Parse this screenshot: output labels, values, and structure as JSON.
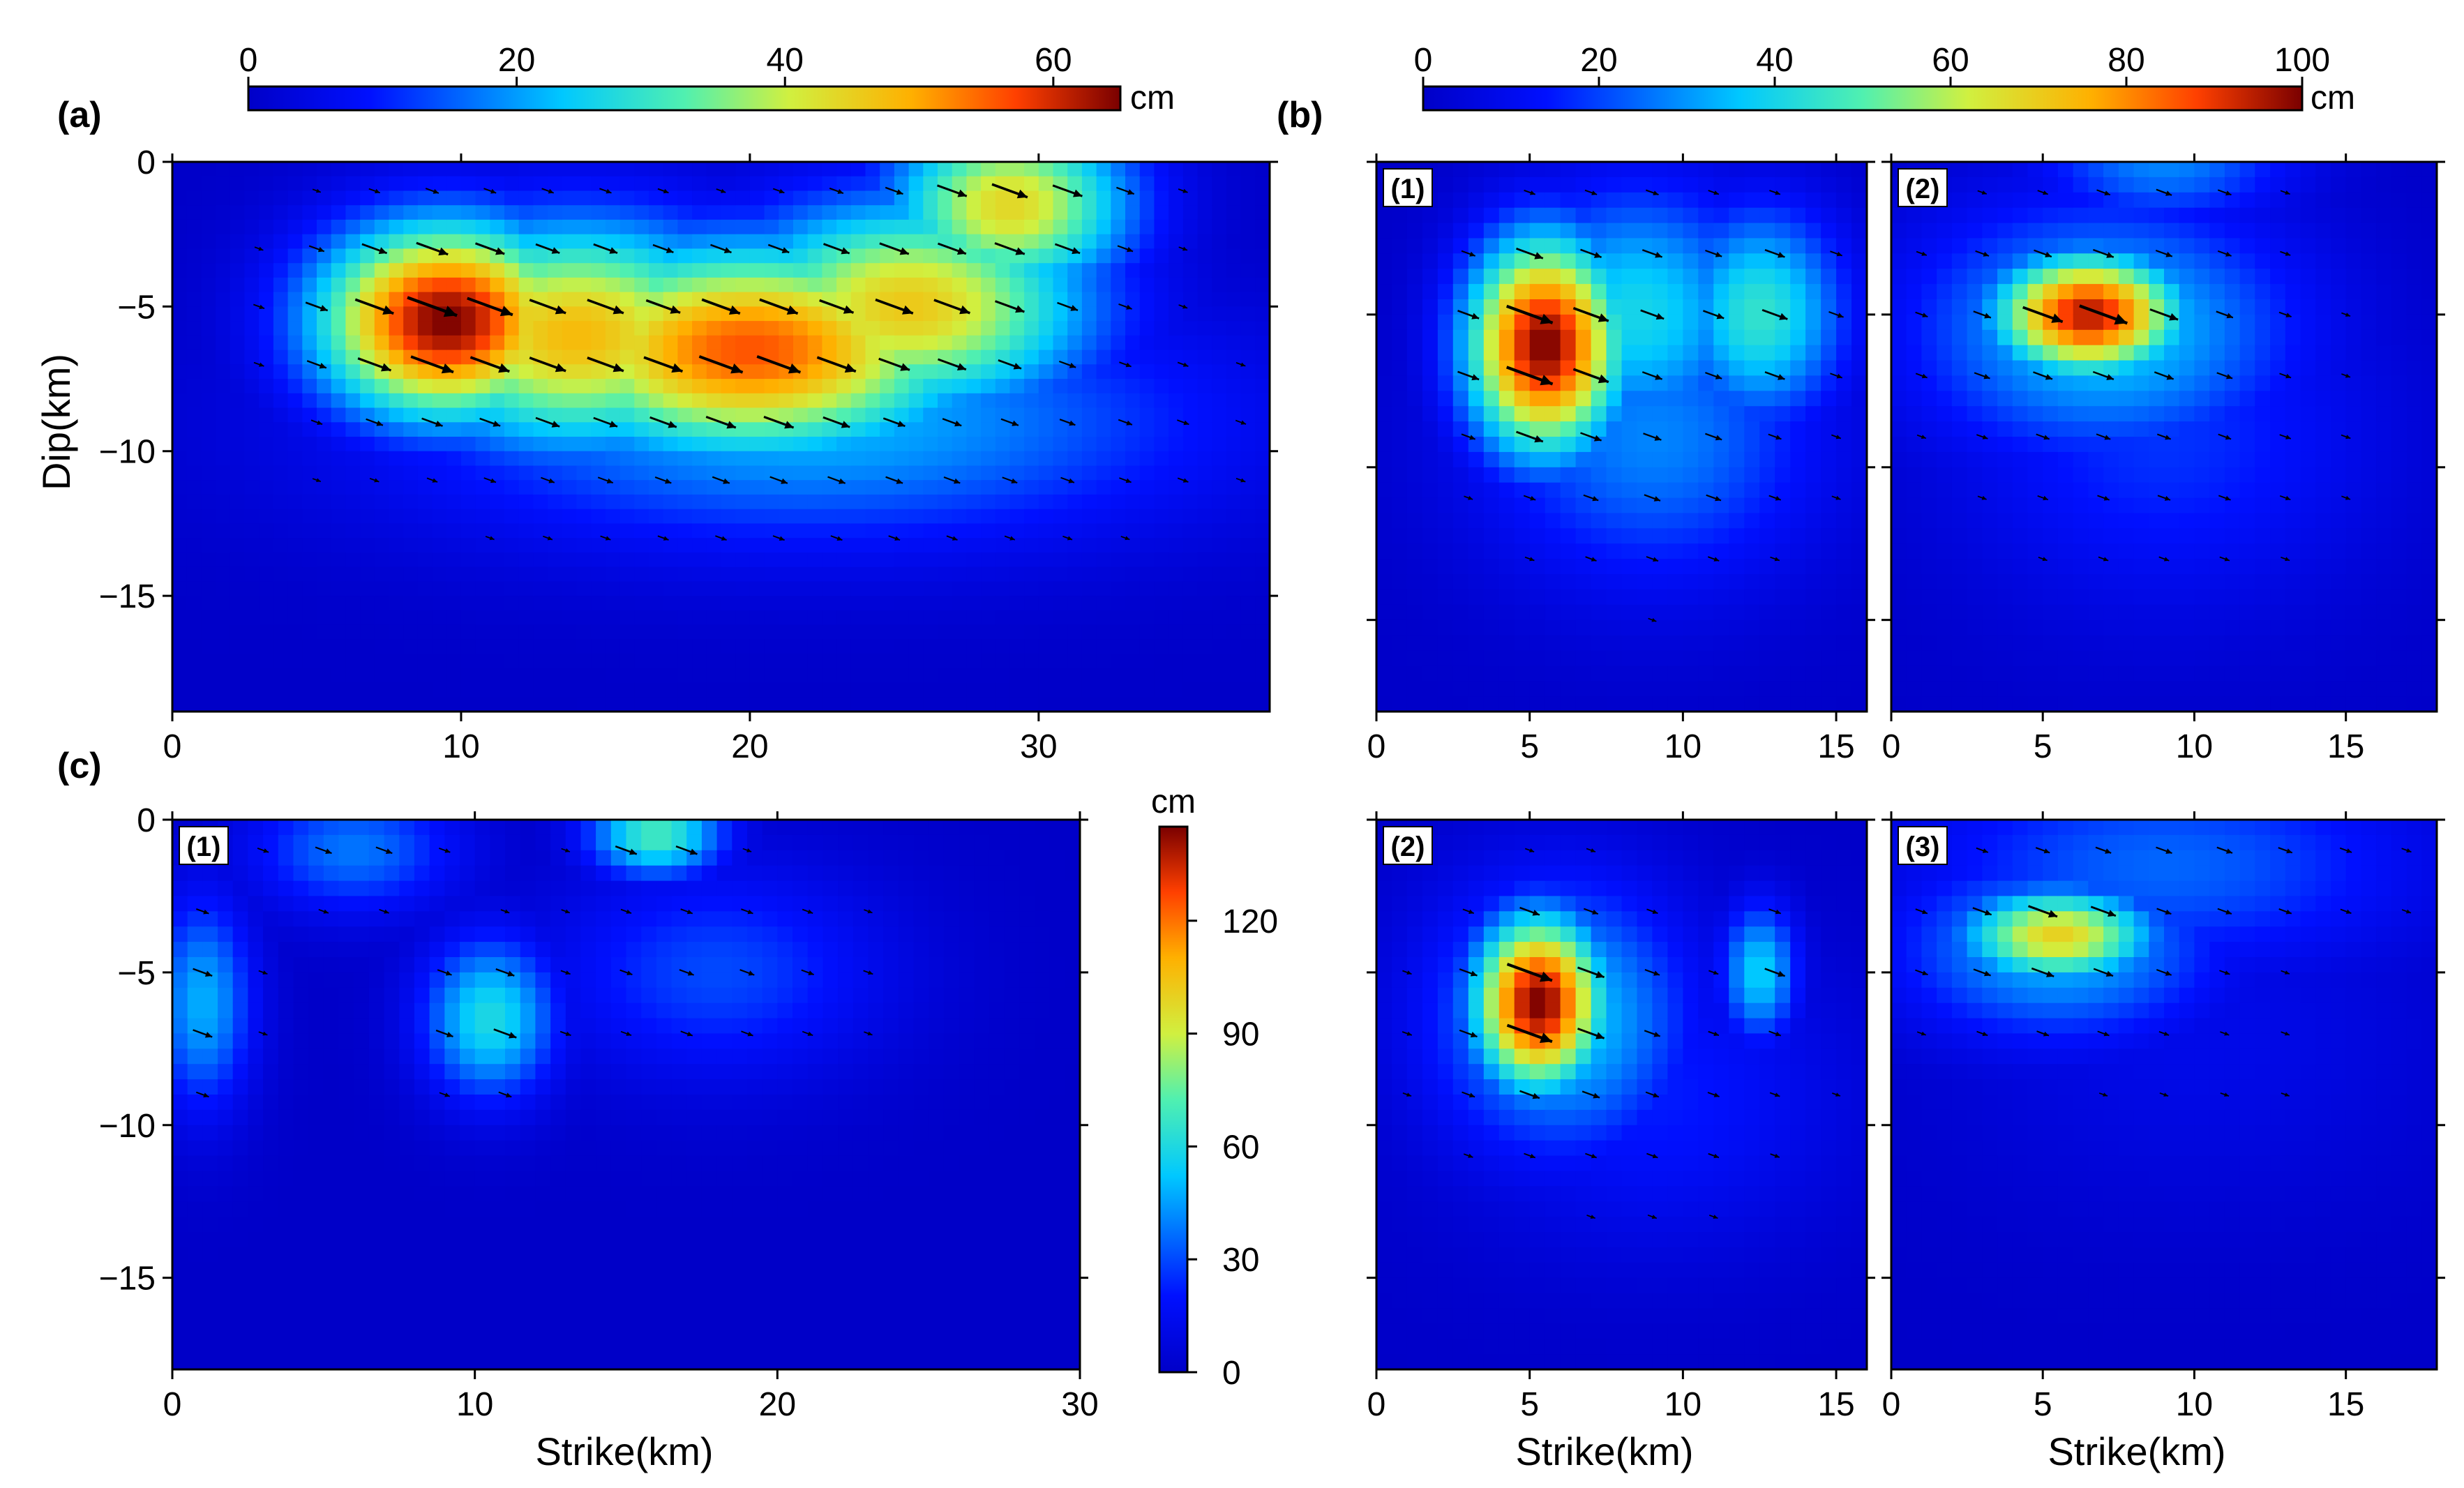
{
  "chart_data": [
    {
      "id": "a",
      "type": "heatmap",
      "panel_label": "(a)",
      "xlabel": "",
      "ylabel": "Dip(km)",
      "xlim": [
        0,
        38
      ],
      "ylim": [
        -19,
        0
      ],
      "xticks": [
        0,
        10,
        20,
        30
      ],
      "yticks": [
        0,
        -5,
        -10,
        -15
      ],
      "colorbar": {
        "ticks": [
          0,
          20,
          40,
          60
        ],
        "max": 65,
        "unit": "cm"
      },
      "slip_patches": [
        {
          "strike_km": 9.5,
          "dip_km": -5.5,
          "slip_cm": 65,
          "sx": 3.2,
          "sy": 2.4
        },
        {
          "strike_km": 14,
          "dip_km": -6,
          "slip_cm": 48,
          "sx": 4.5,
          "sy": 2.8
        },
        {
          "strike_km": 20,
          "dip_km": -6.5,
          "slip_cm": 56,
          "sx": 5.5,
          "sy": 2.6
        },
        {
          "strike_km": 25.5,
          "dip_km": -5,
          "slip_cm": 46,
          "sx": 4.5,
          "sy": 2.6
        },
        {
          "strike_km": 29,
          "dip_km": -1.5,
          "slip_cm": 44,
          "sx": 3,
          "sy": 2.2
        },
        {
          "strike_km": 22,
          "dip_km": -9,
          "slip_cm": 22,
          "sx": 10,
          "sy": 3
        }
      ]
    },
    {
      "id": "b1",
      "type": "heatmap",
      "panel_label": "(b)",
      "sublabel": "(1)",
      "xlim": [
        0,
        16
      ],
      "ylim": [
        -18,
        0
      ],
      "xticks": [
        0,
        5,
        10,
        15
      ],
      "colorbar": {
        "ticks": [
          0,
          20,
          40,
          60,
          80,
          100
        ],
        "max": 100,
        "unit": "cm"
      },
      "slip_patches": [
        {
          "strike_km": 5.5,
          "dip_km": -6,
          "slip_cm": 100,
          "sx": 1.8,
          "sy": 2.5
        },
        {
          "strike_km": 8.5,
          "dip_km": -5,
          "slip_cm": 40,
          "sx": 3,
          "sy": 3
        },
        {
          "strike_km": 12.5,
          "dip_km": -5,
          "slip_cm": 45,
          "sx": 2,
          "sy": 2.5
        },
        {
          "strike_km": 9,
          "dip_km": -9,
          "slip_cm": 28,
          "sx": 4,
          "sy": 3.5
        }
      ]
    },
    {
      "id": "b2",
      "type": "heatmap",
      "sublabel": "(2)",
      "xlim": [
        0,
        18
      ],
      "ylim": [
        -18,
        0
      ],
      "xticks": [
        0,
        5,
        10,
        15
      ],
      "colorbar": {
        "max": 100
      },
      "slip_patches": [
        {
          "strike_km": 6.5,
          "dip_km": -5,
          "slip_cm": 95,
          "sx": 2.2,
          "sy": 1.4
        },
        {
          "strike_km": 7,
          "dip_km": -5.5,
          "slip_cm": 38,
          "sx": 4.5,
          "sy": 3
        },
        {
          "strike_km": 9,
          "dip_km": -9,
          "slip_cm": 18,
          "sx": 5,
          "sy": 4
        },
        {
          "strike_km": 9,
          "dip_km": 0,
          "slip_cm": 28,
          "sx": 3,
          "sy": 1.5
        }
      ]
    },
    {
      "id": "c1",
      "type": "heatmap",
      "panel_label": "(c)",
      "sublabel": "(1)",
      "xlabel": "Strike(km)",
      "xlim": [
        0,
        30
      ],
      "ylim": [
        -18,
        0
      ],
      "xticks": [
        0,
        10,
        20,
        30
      ],
      "yticks": [
        0,
        -5,
        -10,
        -15
      ],
      "colorbar": {
        "ticks": [
          0,
          30,
          60,
          90,
          120
        ],
        "max": 145,
        "unit": "cm"
      },
      "slip_patches": [
        {
          "strike_km": 10.5,
          "dip_km": -6.5,
          "slip_cm": 60,
          "sx": 1.6,
          "sy": 1.9
        },
        {
          "strike_km": 16,
          "dip_km": -0.5,
          "slip_cm": 70,
          "sx": 1.6,
          "sy": 1
        },
        {
          "strike_km": 1,
          "dip_km": -6,
          "slip_cm": 48,
          "sx": 1.2,
          "sy": 2.5
        },
        {
          "strike_km": 18,
          "dip_km": -5,
          "slip_cm": 30,
          "sx": 4,
          "sy": 2.5
        },
        {
          "strike_km": 6,
          "dip_km": -1,
          "slip_cm": 38,
          "sx": 2.5,
          "sy": 1.5
        }
      ]
    },
    {
      "id": "c2",
      "type": "heatmap",
      "sublabel": "(2)",
      "xlabel": "Strike(km)",
      "xlim": [
        0,
        16
      ],
      "ylim": [
        -18,
        0
      ],
      "xticks": [
        0,
        5,
        10,
        15
      ],
      "colorbar": {
        "max": 145
      },
      "slip_patches": [
        {
          "strike_km": 5.3,
          "dip_km": -6,
          "slip_cm": 145,
          "sx": 1.5,
          "sy": 2
        },
        {
          "strike_km": 6,
          "dip_km": -6.5,
          "slip_cm": 55,
          "sx": 3,
          "sy": 3.2
        },
        {
          "strike_km": 12.5,
          "dip_km": -5,
          "slip_cm": 55,
          "sx": 0.9,
          "sy": 1.6
        },
        {
          "strike_km": 9,
          "dip_km": -9,
          "slip_cm": 22,
          "sx": 4.5,
          "sy": 3.5
        }
      ]
    },
    {
      "id": "c3",
      "type": "heatmap",
      "sublabel": "(3)",
      "xlabel": "Strike(km)",
      "xlim": [
        0,
        18
      ],
      "ylim": [
        -18,
        0
      ],
      "xticks": [
        0,
        5,
        10,
        15
      ],
      "colorbar": {
        "max": 145
      },
      "slip_patches": [
        {
          "strike_km": 5.5,
          "dip_km": -3.8,
          "slip_cm": 100,
          "sx": 2.3,
          "sy": 1.1
        },
        {
          "strike_km": 5.5,
          "dip_km": -4.2,
          "slip_cm": 50,
          "sx": 3.8,
          "sy": 2.2
        },
        {
          "strike_km": 9,
          "dip_km": -1.5,
          "slip_cm": 35,
          "sx": 6,
          "sy": 2.5
        },
        {
          "strike_km": 10,
          "dip_km": -7,
          "slip_cm": 12,
          "sx": 6,
          "sy": 4
        }
      ]
    }
  ]
}
